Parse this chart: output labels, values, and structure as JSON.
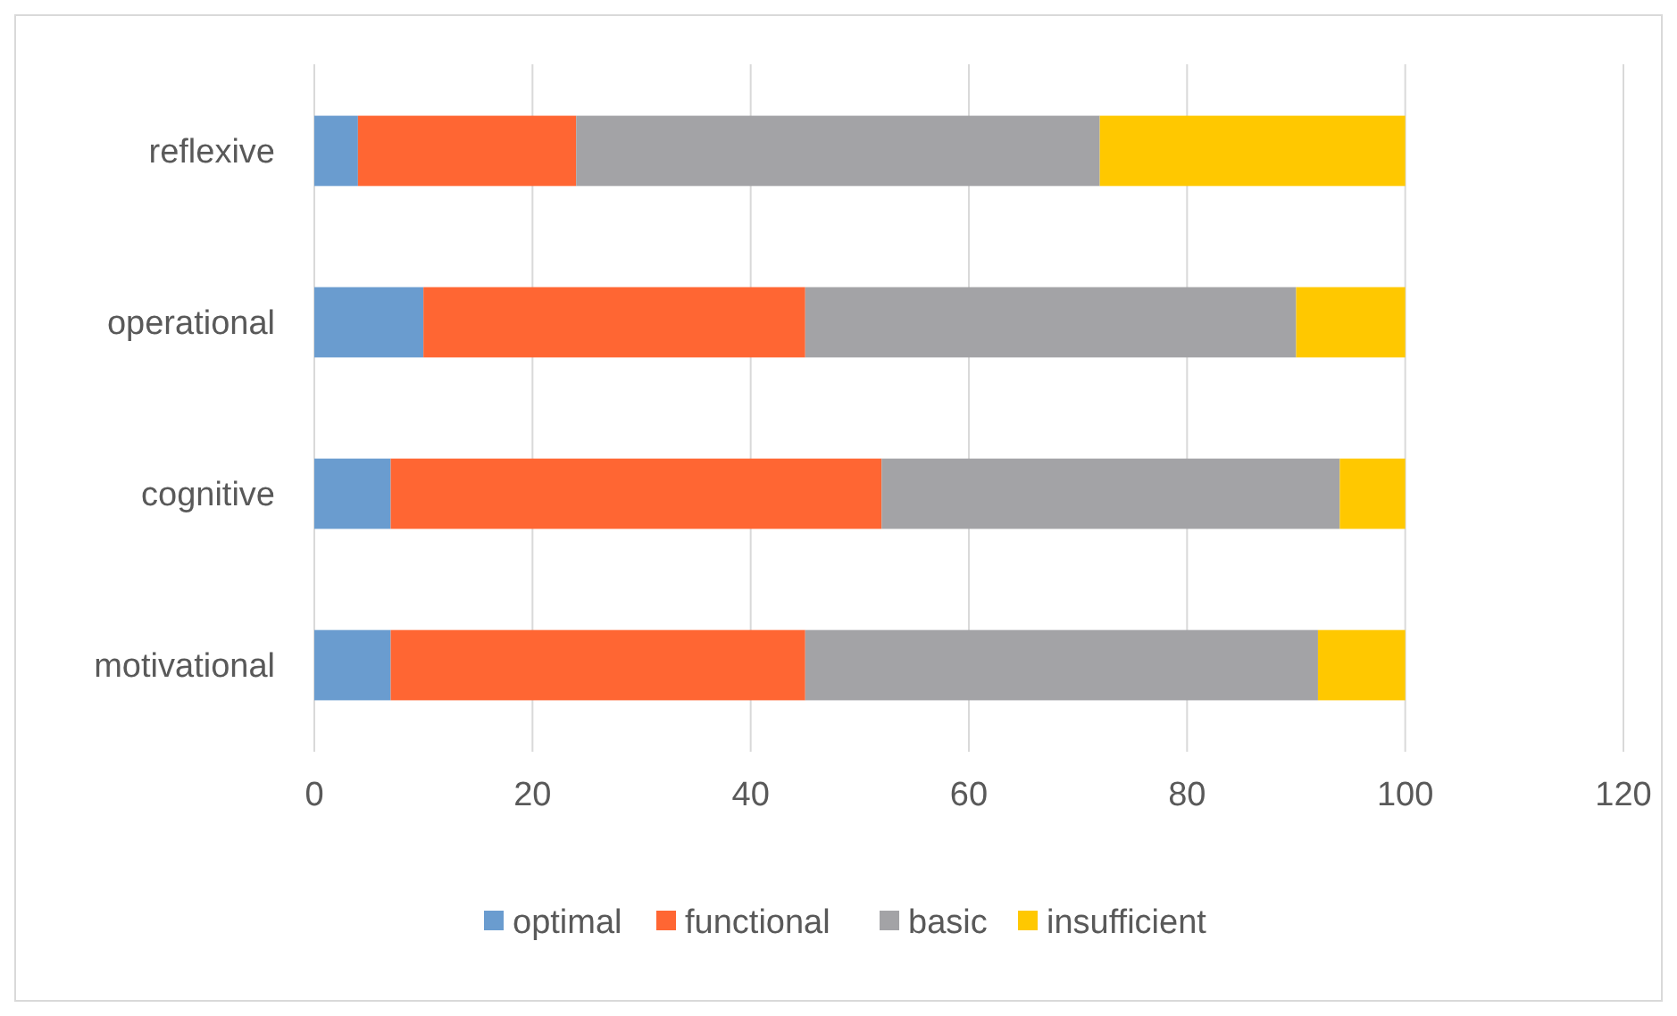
{
  "chart_data": {
    "type": "bar",
    "orientation": "horizontal",
    "stacked": true,
    "categories": [
      "reflexive",
      "operational",
      "cognitive",
      "motivational"
    ],
    "series": [
      {
        "name": "optimal",
        "color": "#6a9ccf",
        "values": [
          4,
          10,
          7,
          7
        ]
      },
      {
        "name": "functional",
        "color": "#ff6633",
        "values": [
          20,
          35,
          45,
          38
        ]
      },
      {
        "name": "basic",
        "color": "#a3a3a6",
        "values": [
          48,
          45,
          42,
          47
        ]
      },
      {
        "name": "insufficient",
        "color": "#ffc800",
        "values": [
          28,
          10,
          6,
          8
        ]
      }
    ],
    "xlim": [
      0,
      120
    ],
    "xticks": [
      0,
      20,
      40,
      60,
      80,
      100,
      120
    ],
    "grid": "x",
    "legend": "bottom"
  }
}
